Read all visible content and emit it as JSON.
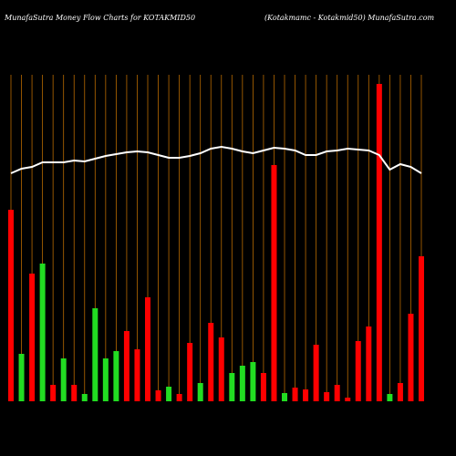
{
  "chart_data": {
    "type": "bar",
    "title": "MunafaSutra  Money Flow  Charts for KOTAKMID50",
    "subtitle": "(Kotakmamc -   Kotakmid50) MunafaSutra.com",
    "categories": [
      null,
      null,
      null,
      null,
      null,
      null,
      null,
      null,
      null,
      null,
      null,
      null,
      null,
      null,
      null,
      null,
      null,
      null,
      null,
      null,
      null,
      null,
      null,
      null,
      null,
      null,
      null,
      null,
      null,
      null,
      null,
      null,
      null,
      null,
      null,
      null,
      null,
      null,
      null,
      null
    ],
    "values": [
      210,
      52,
      140,
      151,
      18,
      47,
      18,
      8,
      102,
      47,
      55,
      77,
      57,
      114,
      12,
      16,
      8,
      64,
      20,
      86,
      70,
      31,
      39,
      43,
      31,
      259,
      9,
      15,
      13,
      62,
      10,
      18,
      4,
      66,
      82,
      348,
      8,
      20,
      96,
      159
    ],
    "colors": [
      "#ff0000",
      "#22dd22",
      "#ff0000",
      "#22dd22",
      "#ff0000",
      "#22dd22",
      "#ff0000",
      "#22dd22",
      "#22dd22",
      "#22dd22",
      "#22dd22",
      "#ff0000",
      "#ff0000",
      "#ff0000",
      "#ff0000",
      "#22dd22",
      "#ff0000",
      "#ff0000",
      "#22dd22",
      "#ff0000",
      "#ff0000",
      "#22dd22",
      "#22dd22",
      "#22dd22",
      "#ff0000",
      "#ff0000",
      "#22dd22",
      "#ff0000",
      "#ff0000",
      "#ff0000",
      "#ff0000",
      "#ff0000",
      "#ff0000",
      "#ff0000",
      "#ff0000",
      "#ff0000",
      "#22dd22",
      "#ff0000",
      "#ff0000",
      "#ff0000"
    ],
    "line": {
      "color": "#ffffff",
      "values": [
        250,
        255,
        257,
        262,
        262,
        262,
        264,
        263,
        266,
        269,
        271,
        273,
        274,
        273,
        270,
        267,
        267,
        269,
        272,
        277,
        279,
        277,
        274,
        272,
        275,
        278,
        277,
        275,
        270,
        270,
        274,
        275,
        277,
        276,
        275,
        270,
        254,
        260,
        257,
        250
      ]
    },
    "ylim": [
      0,
      350
    ],
    "grid_color": "#b86a00"
  }
}
